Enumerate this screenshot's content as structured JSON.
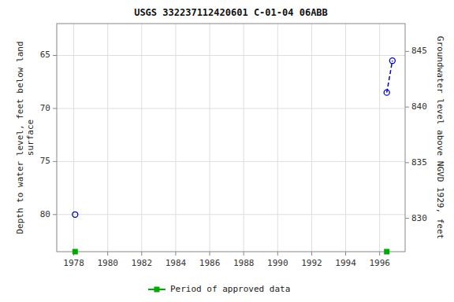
{
  "chart_data": {
    "type": "scatter",
    "title": "USGS 332237112420601 C-01-04 06ABB",
    "y_label": "Depth to water level, feet below land\nsurface",
    "y2_label": "Groundwater level above NGVD 1929, feet",
    "xlim": [
      1977.0,
      1997.5
    ],
    "xticks": [
      1978,
      1980,
      1982,
      1984,
      1986,
      1988,
      1990,
      1992,
      1994,
      1996
    ],
    "ylim": [
      83.5,
      62.0
    ],
    "yticks": [
      65,
      70,
      75,
      80
    ],
    "y2lim": [
      827.0,
      847.5
    ],
    "y2ticks": [
      830,
      835,
      840,
      845
    ],
    "grid": true,
    "legend": "bottom",
    "series": [
      {
        "type": "scatter",
        "marker": "open-circle",
        "color": "#0000cc",
        "x": [
          1978.08,
          1996.42,
          1996.75
        ],
        "values": [
          80.0,
          68.5,
          65.5
        ]
      },
      {
        "type": "line",
        "line_style": "dashed",
        "color": "#0000cc",
        "x": [
          1996.42,
          1996.75
        ],
        "values": [
          68.5,
          65.5
        ]
      },
      {
        "name": "Period of approved data",
        "type": "scatter",
        "marker": "square",
        "color": "#00aa00",
        "x": [
          1978.08,
          1996.42
        ],
        "values": [
          83.5,
          83.5
        ]
      }
    ]
  }
}
